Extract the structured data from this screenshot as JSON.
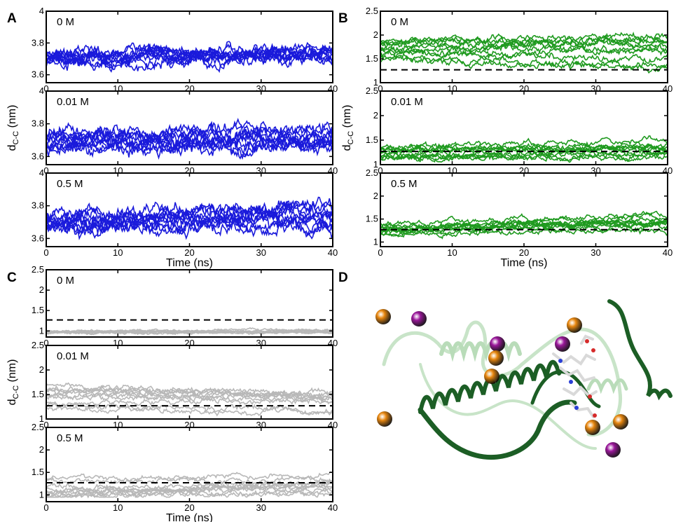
{
  "panel_letters": [
    "A",
    "B",
    "C",
    "D"
  ],
  "colors": {
    "A": "#1a1adb",
    "B": "#1f9a1f",
    "C": "#b8b8b8",
    "ref_line": "#000000"
  },
  "chart_data": [
    {
      "id": "A",
      "type": "line",
      "n_traces": 10,
      "xlim": [
        0,
        40
      ],
      "xticks": [
        0,
        10,
        20,
        30,
        40
      ],
      "xlabel": "Time (ns)",
      "ylabel_main": "d",
      "ylabel_sub": "C-C",
      "ylabel_unit": "(nm)",
      "subplots": [
        {
          "label": "0 M",
          "ylim": [
            3.55,
            4.0
          ],
          "yticks": [
            3.6,
            3.8,
            4
          ],
          "traces": {
            "start": 3.7,
            "end": 3.72,
            "spread": 0.035,
            "noise": 0.025,
            "drift": 0.03,
            "min": 3.62,
            "max": 3.92
          }
        },
        {
          "label": "0.01 M",
          "ylim": [
            3.55,
            4.0
          ],
          "yticks": [
            3.6,
            3.8,
            4
          ],
          "traces": {
            "start": 3.7,
            "end": 3.72,
            "spread": 0.05,
            "noise": 0.03,
            "drift": 0.06,
            "min": 3.58,
            "max": 3.9
          }
        },
        {
          "label": "0.5 M",
          "ylim": [
            3.55,
            4.0
          ],
          "yticks": [
            3.6,
            3.8,
            4
          ],
          "traces": {
            "start": 3.7,
            "end": 3.77,
            "spread": 0.04,
            "noise": 0.03,
            "drift": 0.09,
            "min": 3.6,
            "max": 3.95
          }
        }
      ]
    },
    {
      "id": "B",
      "type": "line",
      "n_traces": 10,
      "xlim": [
        0,
        40
      ],
      "xticks": [
        0,
        10,
        20,
        30,
        40
      ],
      "xlabel": "Time (ns)",
      "ylabel_main": "d",
      "ylabel_sub": "C-C",
      "ylabel_unit": "(nm)",
      "reference_y": 1.27,
      "subplots": [
        {
          "label": "0 M",
          "ylim": [
            1.0,
            2.5
          ],
          "yticks": [
            1,
            1.5,
            2,
            2.5
          ],
          "traces": {
            "start": 1.7,
            "end": 1.65,
            "spread": 0.22,
            "noise": 0.05,
            "drift": 0.25,
            "min": 1.15,
            "max": 2.48
          }
        },
        {
          "label": "0.01 M",
          "ylim": [
            1.0,
            2.5
          ],
          "yticks": [
            1,
            1.5,
            2,
            2.5
          ],
          "traces": {
            "start": 1.25,
            "end": 1.3,
            "spread": 0.12,
            "noise": 0.04,
            "drift": 0.1,
            "min": 1.05,
            "max": 1.85
          }
        },
        {
          "label": "0.5 M",
          "ylim": [
            0.9,
            2.5
          ],
          "yticks": [
            1,
            1.5,
            2,
            2.5
          ],
          "traces": {
            "start": 1.25,
            "end": 1.4,
            "spread": 0.15,
            "noise": 0.04,
            "drift": 0.14,
            "min": 0.95,
            "max": 1.9
          }
        }
      ]
    },
    {
      "id": "C",
      "type": "line",
      "n_traces": 10,
      "xlim": [
        0,
        40
      ],
      "xticks": [
        0,
        10,
        20,
        30,
        40
      ],
      "xlabel": "Time (ns)",
      "ylabel_main": "d",
      "ylabel_sub": "C-C",
      "ylabel_unit": "(nm)",
      "reference_y": 1.27,
      "subplots": [
        {
          "label": "0 M",
          "ylim": [
            0.85,
            2.5
          ],
          "yticks": [
            1,
            1.5,
            2,
            2.5
          ],
          "traces": {
            "start": 0.96,
            "end": 0.98,
            "spread": 0.03,
            "noise": 0.02,
            "drift": 0.04,
            "min": 0.9,
            "max": 1.1
          }
        },
        {
          "label": "0.01 M",
          "ylim": [
            1.0,
            2.5
          ],
          "yticks": [
            1,
            1.5,
            2,
            2.5
          ],
          "traces": {
            "start": 1.45,
            "end": 1.4,
            "spread": 0.25,
            "noise": 0.04,
            "drift": 0.15,
            "min": 1.0,
            "max": 2.0
          }
        },
        {
          "label": "0.5 M",
          "ylim": [
            0.85,
            2.5
          ],
          "yticks": [
            1,
            1.5,
            2,
            2.5
          ],
          "traces": {
            "start": 1.2,
            "end": 1.35,
            "spread": 0.25,
            "noise": 0.04,
            "drift": 0.2,
            "min": 0.95,
            "max": 2.1
          }
        }
      ]
    }
  ],
  "molecule": {
    "ion_colors": {
      "orange": "#e8870f",
      "purple": "#9b189b"
    },
    "ribbon_colors": {
      "dark": "#1c5e25",
      "light": "#c8e4c8"
    },
    "ions": [
      {
        "type": "orange"
      },
      {
        "type": "purple"
      },
      {
        "type": "orange"
      },
      {
        "type": "purple"
      },
      {
        "type": "purple"
      },
      {
        "type": "orange"
      },
      {
        "type": "orange"
      },
      {
        "type": "orange"
      },
      {
        "type": "orange"
      },
      {
        "type": "orange"
      },
      {
        "type": "purple"
      }
    ]
  }
}
